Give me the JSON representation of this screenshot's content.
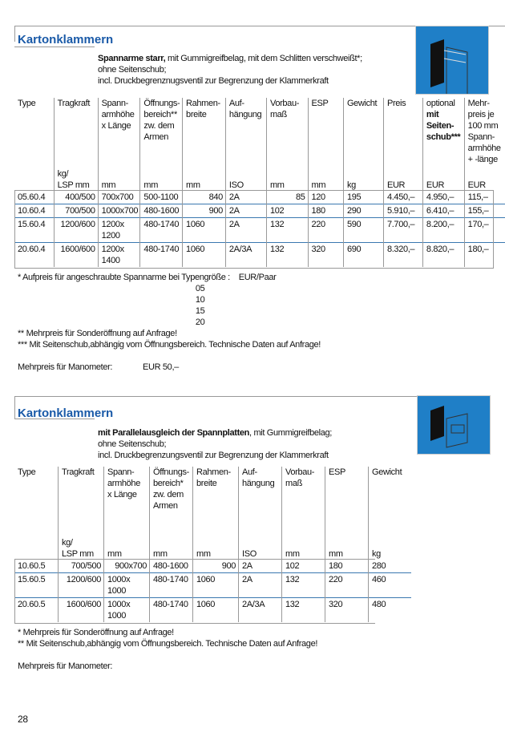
{
  "sections": [
    {
      "title": "Kartonklammern",
      "subtitle_bold": "Spannarme starr,",
      "subtitle_rest": " mit Gummigreifbelag, mit dem Schlitten verschweißt*;",
      "subtitle_lines": [
        "ohne Seitenschub;",
        "incl. Druckbegrenznugsventil zur Begrenzung der Klammerkraft"
      ],
      "image_icon": "carton-clamp-rigid-arms-illustration",
      "columns": [
        {
          "label": "Type",
          "unit": ""
        },
        {
          "label": "Tragkraft",
          "unit": "kg/\nLSP mm"
        },
        {
          "label": "Spann-\narmhöhe\nx Länge",
          "unit": "mm"
        },
        {
          "label": "Öffnungs-\nbereich**\nzw. dem\nArmen",
          "unit": "mm"
        },
        {
          "label": "Rahmen-\nbreite",
          "unit": "mm"
        },
        {
          "label": "Auf-\nhängung",
          "unit": "ISO"
        },
        {
          "label": "Vorbau-\nmaß",
          "unit": "mm"
        },
        {
          "label": "ESP",
          "unit": "mm"
        },
        {
          "label": "Gewicht",
          "unit": "kg"
        },
        {
          "label": "Preis",
          "unit": "EUR"
        },
        {
          "label": "optional\nmit\nSeiten-\nschub***",
          "unit": "EUR",
          "bold_from": 1
        },
        {
          "label": "Mehr-\npreis je\n100 mm\nSpann-\narmhöhe\n+ -länge",
          "unit": "EUR"
        }
      ],
      "rows": [
        [
          "05.60.4",
          "400/500",
          "700x700",
          "500-1100",
          "840",
          "2A",
          "85",
          "120",
          "195",
          "4.450,–",
          "4.950,–",
          "115,–"
        ],
        [
          "10.60.4",
          "700/500",
          "1000x700",
          "480-1600",
          "900",
          "2A",
          "102",
          "180",
          "290",
          "5.910,–",
          "6.410,–",
          "155,–"
        ],
        [
          "15.60.4",
          "1200/600",
          "1200x\n1200",
          "480-1740",
          "1060",
          "2A",
          "132",
          "220",
          "590",
          "7.700,–",
          "8.200,–",
          "170,–"
        ],
        [
          "20.60.4",
          "1600/600",
          "1200x\n1400",
          "480-1740",
          "1060",
          "2A/3A",
          "132",
          "320",
          "690",
          "8.320,–",
          "8.820,–",
          "180,–"
        ]
      ],
      "footnotes": [
        "* Aufpreis für angeschraubte Spannarme bei Typengröße :    EUR/Paar",
        "                                                                                  05",
        "                                                                                  10",
        "                                                                                  15",
        "                                                                                  20",
        "** Mehrpreis für Sonderöffnung auf Anfrage!",
        "*** Mit Seitenschub,abhängig vom Öffnungsbereich. Technische Daten auf Anfrage!",
        "",
        "Mehrpreis für Manometer:              EUR 50,–"
      ]
    },
    {
      "title": "Kartonklammern",
      "subtitle_bold": "mit Parallelausgleich der Spannplatten",
      "subtitle_rest": ", mit Gummigreifbelag;",
      "subtitle_lines": [
        "ohne Seitenschub;",
        "incl. Druckbegrenzungsventil zur Begrenzung der Klammerkraft"
      ],
      "image_icon": "carton-clamp-parallel-plates-illustration",
      "columns": [
        {
          "label": "Type",
          "unit": ""
        },
        {
          "label": "Tragkraft",
          "unit": "kg/\nLSP mm"
        },
        {
          "label": "Spann-\narmhöhe\nx Länge",
          "unit": "mm"
        },
        {
          "label": "Öffnungs-\nbereich*\nzw. dem\nArmen",
          "unit": "mm"
        },
        {
          "label": "Rahmen-\nbreite",
          "unit": "mm"
        },
        {
          "label": "Auf-\nhängung",
          "unit": "ISO"
        },
        {
          "label": "Vorbau-\nmaß",
          "unit": "mm"
        },
        {
          "label": "ESP",
          "unit": "mm"
        },
        {
          "label": "Gewicht",
          "unit": "kg"
        }
      ],
      "rows": [
        [
          "10.60.5",
          "700/500",
          "900x700",
          "480-1600",
          "900",
          "2A",
          "102",
          "180",
          "280"
        ],
        [
          "15.60.5",
          "1200/600",
          "1000x\n1000",
          "480-1740",
          "1060",
          "2A",
          "132",
          "220",
          "460"
        ],
        [
          "20.60.5",
          "1600/600",
          "1000x\n1000",
          "480-1740",
          "1060",
          "2A/3A",
          "132",
          "320",
          "480"
        ]
      ],
      "footnotes": [
        "* Mehrpreis für Sonderöffnung auf Anfrage!",
        "** Mit Seitenschub,abhängig vom Öffnungsbereich. Technische Daten auf Anfrage!",
        "",
        "Mehrpreis für Manometer:"
      ]
    }
  ],
  "page_number": "28",
  "colors": {
    "title": "#1a5aa8",
    "image_bg": "#1f7fc7",
    "row_separator": "#3a78b0"
  }
}
